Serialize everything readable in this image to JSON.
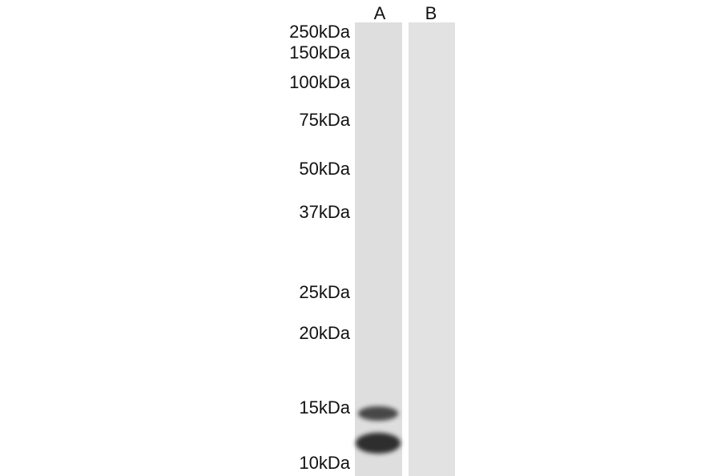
{
  "markers": [
    {
      "label": "250kDa",
      "kda": 250
    },
    {
      "label": "150kDa",
      "kda": 150
    },
    {
      "label": "100kDa",
      "kda": 100
    },
    {
      "label": "75kDa",
      "kda": 75
    },
    {
      "label": "50kDa",
      "kda": 50
    },
    {
      "label": "37kDa",
      "kda": 37
    },
    {
      "label": "25kDa",
      "kda": 25
    },
    {
      "label": "20kDa",
      "kda": 20
    },
    {
      "label": "15kDa",
      "kda": 15
    },
    {
      "label": "10kDa",
      "kda": 10
    }
  ],
  "lanes": [
    {
      "label": "A",
      "bands": [
        {
          "kda": 14,
          "intensity": 0.8
        },
        {
          "kda": 12,
          "intensity": 0.9
        }
      ]
    },
    {
      "label": "B",
      "bands": []
    }
  ],
  "colors": {
    "lane_background": "#dedede",
    "band": "#2e2e2e"
  }
}
